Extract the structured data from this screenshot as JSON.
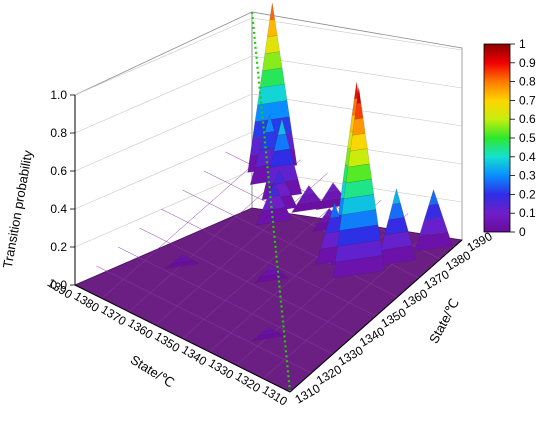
{
  "chart_data": {
    "type": "surface3d",
    "title": "",
    "zlabel": "Transition probability",
    "xlabel": "State/℃",
    "ylabel": "State/℃",
    "z_ticks": [
      "0.0",
      "0.2",
      "0.4",
      "0.6",
      "0.8",
      "1.0"
    ],
    "zlim": [
      0,
      1
    ],
    "x_ticks": [
      "1390",
      "1380",
      "1370",
      "1360",
      "1350",
      "1340",
      "1330",
      "1320",
      "1310"
    ],
    "y_ticks": [
      "1310",
      "1320",
      "1330",
      "1340",
      "1350",
      "1360",
      "1370",
      "1380",
      "1390"
    ],
    "colorbar": {
      "ticks": [
        "0",
        "0.1",
        "0.2",
        "0.3",
        "0.4",
        "0.5",
        "0.6",
        "0.7",
        "0.8",
        "0.9",
        "1"
      ],
      "colors": [
        "#6a0b9a",
        "#6f1ec8",
        "#2f2ee6",
        "#0a8dff",
        "#14e0d0",
        "#2ee82e",
        "#c6ee0e",
        "#ffd400",
        "#ff7a00",
        "#f00000",
        "#8a0000"
      ]
    },
    "peaks": [
      {
        "x": 1375,
        "y": 1383,
        "z": 0.86
      },
      {
        "x": 1372,
        "y": 1378,
        "z": 0.34
      },
      {
        "x": 1365,
        "y": 1375,
        "z": 0.4
      },
      {
        "x": 1362,
        "y": 1370,
        "z": 0.2
      },
      {
        "x": 1360,
        "y": 1365,
        "z": 0.2
      },
      {
        "x": 1355,
        "y": 1375,
        "z": 0.12
      },
      {
        "x": 1350,
        "y": 1380,
        "z": 0.12
      },
      {
        "x": 1345,
        "y": 1372,
        "z": 0.1
      },
      {
        "x": 1335,
        "y": 1362,
        "z": 0.3
      },
      {
        "x": 1330,
        "y": 1366,
        "z": 0.93
      },
      {
        "x": 1326,
        "y": 1362,
        "z": 0.97
      },
      {
        "x": 1320,
        "y": 1372,
        "z": 0.38
      },
      {
        "x": 1315,
        "y": 1383,
        "z": 0.3
      },
      {
        "x": 1345,
        "y": 1345,
        "z": 0.07
      },
      {
        "x": 1370,
        "y": 1335,
        "z": 0.05
      },
      {
        "x": 1330,
        "y": 1325,
        "z": 0.05
      }
    ]
  }
}
